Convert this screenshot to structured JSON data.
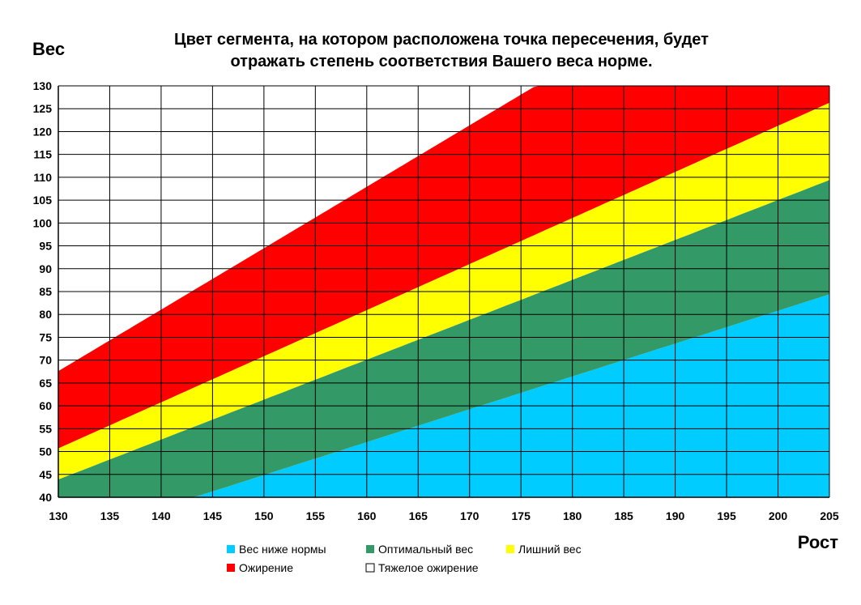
{
  "chart_data": {
    "type": "area",
    "title_lines": [
      "Цвет сегмента, на котором расположена точка пересечения, будет",
      "отражать степень соответствия Вашего веса норме."
    ],
    "ylabel": "Вес",
    "xlabel": "Рост",
    "xlim": [
      130,
      205
    ],
    "ylim": [
      40,
      130
    ],
    "x_ticks": [
      130,
      135,
      140,
      145,
      150,
      155,
      160,
      165,
      170,
      175,
      180,
      185,
      190,
      195,
      200,
      205
    ],
    "y_ticks": [
      40,
      45,
      50,
      55,
      60,
      65,
      70,
      75,
      80,
      85,
      90,
      95,
      100,
      105,
      110,
      115,
      120,
      125,
      130
    ],
    "grid": true,
    "legend_position": "bottom",
    "x": [
      130,
      205
    ],
    "boundaries": [
      {
        "name": "underweight_upper",
        "values": [
          30.5,
          84.4
        ]
      },
      {
        "name": "optimal_upper",
        "values": [
          43.9,
          109.4
        ]
      },
      {
        "name": "overweight_upper",
        "values": [
          50.7,
          126.3
        ]
      },
      {
        "name": "obese_upper",
        "values": [
          67.6,
          168.4
        ]
      }
    ],
    "series": [
      {
        "name": "Вес ниже нормы",
        "color": "#00ccff",
        "checkbox": false
      },
      {
        "name": "Оптимальный вес",
        "color": "#339966",
        "checkbox": false
      },
      {
        "name": "Лишний вес",
        "color": "#ffff00",
        "checkbox": false
      },
      {
        "name": "Ожирение",
        "color": "#ff0000",
        "checkbox": false
      },
      {
        "name": "Тяжелое ожирение",
        "color": "#ffffff",
        "checkbox": true
      }
    ]
  }
}
